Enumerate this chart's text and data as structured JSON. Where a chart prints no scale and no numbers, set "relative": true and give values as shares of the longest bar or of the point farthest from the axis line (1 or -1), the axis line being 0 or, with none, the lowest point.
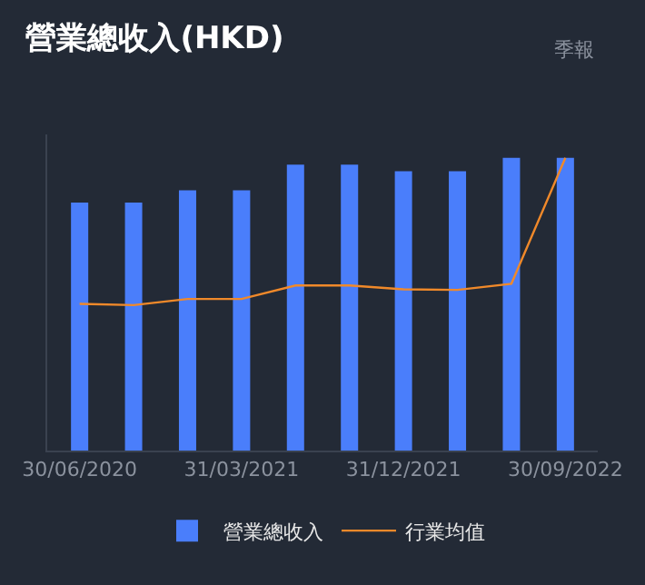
{
  "chart_data": {
    "type": "bar",
    "title": "營業總收入(HKD)",
    "annotations": [
      "季報"
    ],
    "relative": true,
    "categories": [
      "30/06/2020",
      null,
      null,
      "31/03/2021",
      null,
      null,
      "31/12/2021",
      null,
      null,
      "30/09/2022"
    ],
    "series": [
      {
        "name": "營業總收入",
        "color": "#4a7efb",
        "values": [
          0.847,
          0.847,
          0.889,
          0.889,
          0.977,
          0.977,
          0.954,
          0.954,
          1.0,
          1.0
        ]
      },
      {
        "name": "行業均值",
        "type": "line",
        "color": "#f0892a",
        "values": [
          0.501,
          0.497,
          0.518,
          0.518,
          0.564,
          0.564,
          0.551,
          0.549,
          0.57,
          1.0
        ]
      }
    ],
    "legend": "bottom",
    "grid": false,
    "marker": "none",
    "line_style": "solid"
  }
}
